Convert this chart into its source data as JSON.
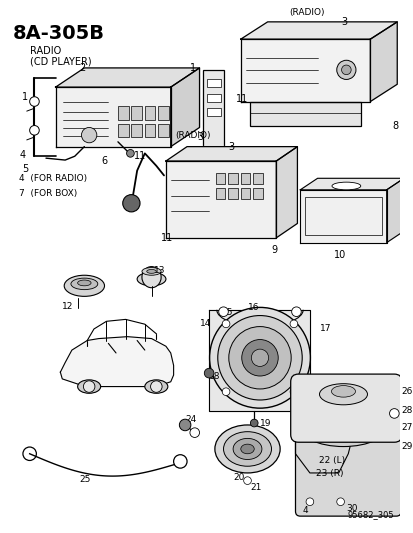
{
  "title": "8A-305B",
  "subtitle1": "RADIO",
  "subtitle2": "(CD PLAYER)",
  "footer": "95682_305",
  "bg": "#ffffff",
  "lc": "#000000"
}
